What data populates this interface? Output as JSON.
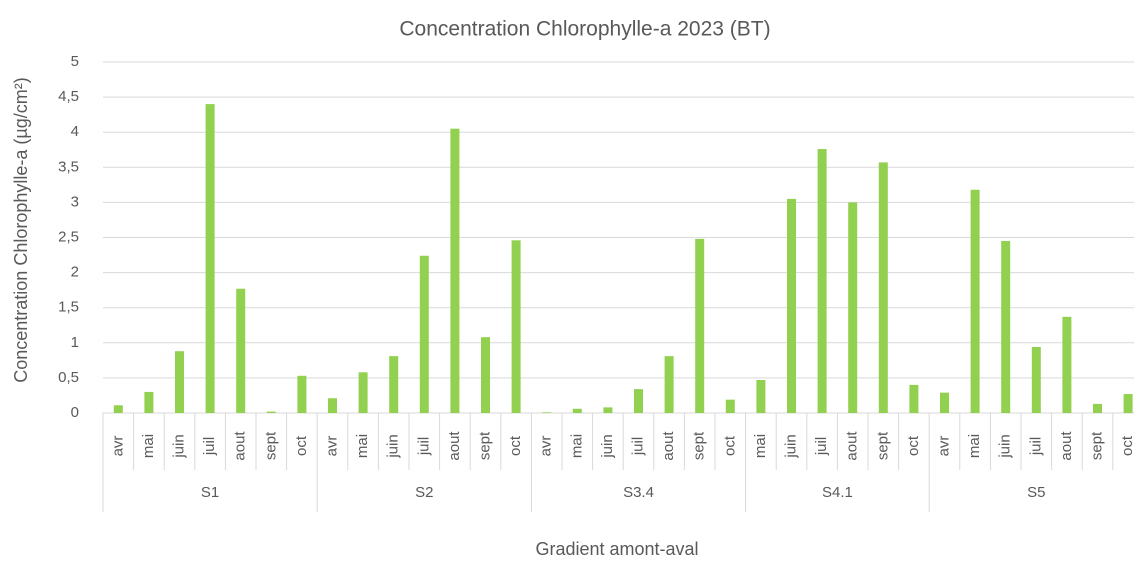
{
  "chart_data": {
    "type": "bar",
    "title": "Concentration Chlorophylle-a 2023 (BT)",
    "x_label": "Gradient amont-aval",
    "y_label": "Concentration Chlorophylle-a (µg/cm²)",
    "color": "#92d050",
    "grid": true,
    "ylim": [
      0,
      5
    ],
    "yticks": [
      0,
      {
        "value": 0.5,
        "label": "0,5"
      },
      1,
      {
        "value": 1.5,
        "label": "1,5"
      },
      2,
      {
        "value": 2.5,
        "label": "2,5"
      },
      3,
      {
        "value": 3.5,
        "label": "3,5"
      },
      4,
      {
        "value": 4.5,
        "label": "4,5"
      },
      5
    ],
    "groups": [
      {
        "name": "S1",
        "categories": [
          "avr",
          "mai",
          "juin",
          "juil",
          "aout",
          "sept",
          "oct"
        ],
        "values": [
          0.11,
          0.3,
          0.88,
          4.4,
          1.77,
          0.02,
          0.53
        ]
      },
      {
        "name": "S2",
        "categories": [
          "avr",
          "mai",
          "juin",
          "juil",
          "aout",
          "sept",
          "oct"
        ],
        "values": [
          0.21,
          0.58,
          0.81,
          2.24,
          4.05,
          1.08,
          2.46
        ]
      },
      {
        "name": "S3.4",
        "categories": [
          "avr",
          "mai",
          "juin",
          "juil",
          "aout",
          "sept",
          "oct"
        ],
        "values": [
          0.01,
          0.06,
          0.08,
          0.34,
          0.81,
          2.48,
          0.19
        ]
      },
      {
        "name": "S4.1",
        "categories": [
          "mai",
          "juin",
          "juil",
          "aout",
          "sept",
          "oct"
        ],
        "values": [
          0.47,
          3.05,
          3.76,
          3.0,
          3.57,
          0.4
        ]
      },
      {
        "name": "S5",
        "categories": [
          "avr",
          "mai",
          "juin",
          "juil",
          "aout",
          "sept",
          "oct"
        ],
        "values": [
          0.29,
          3.18,
          2.45,
          0.94,
          1.37,
          0.13,
          0.27
        ]
      }
    ]
  }
}
